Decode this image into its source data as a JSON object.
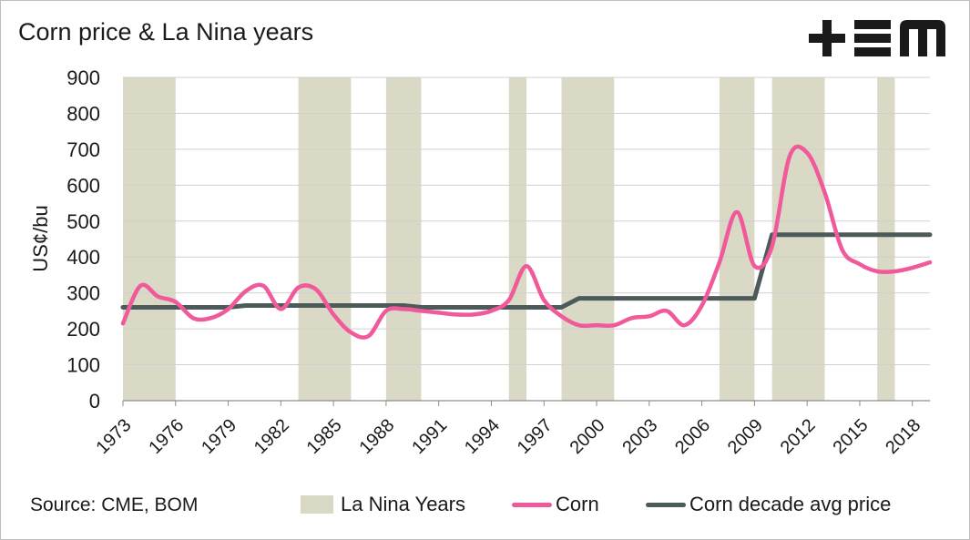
{
  "header": {
    "title": "Corn price & La Nina years",
    "logo_text": "+EM"
  },
  "footer": {
    "source": "Source: CME, BOM"
  },
  "colors": {
    "corn": "#f05a9a",
    "avg": "#4d5a5a",
    "la_nina": "#d9d9c5"
  },
  "chart_data": {
    "type": "line",
    "title": "Corn price & La Nina years",
    "xlabel": "",
    "ylabel": "US¢/bu",
    "ylim": [
      0,
      900
    ],
    "yticks": [
      0,
      100,
      200,
      300,
      400,
      500,
      600,
      700,
      800,
      900
    ],
    "xlim": [
      1973,
      2019
    ],
    "xticks": [
      "1973",
      "1976",
      "1979",
      "1982",
      "1985",
      "1988",
      "1991",
      "1994",
      "1997",
      "2000",
      "2003",
      "2006",
      "2009",
      "2012",
      "2015",
      "2018"
    ],
    "grid": "horizontal",
    "legend_position": "bottom",
    "la_nina_years": [
      {
        "start": 1973,
        "end": 1976
      },
      {
        "start": 1983,
        "end": 1986
      },
      {
        "start": 1988,
        "end": 1990
      },
      {
        "start": 1995,
        "end": 1996
      },
      {
        "start": 1998,
        "end": 2001
      },
      {
        "start": 2007,
        "end": 2009
      },
      {
        "start": 2010,
        "end": 2013
      },
      {
        "start": 2016,
        "end": 2017
      }
    ],
    "series": [
      {
        "name": "Corn",
        "x": [
          1973,
          1974,
          1975,
          1976,
          1977,
          1978,
          1979,
          1980,
          1981,
          1982,
          1983,
          1984,
          1985,
          1986,
          1987,
          1988,
          1989,
          1990,
          1991,
          1992,
          1993,
          1994,
          1995,
          1996,
          1997,
          1998,
          1999,
          2000,
          2001,
          2002,
          2003,
          2004,
          2005,
          2006,
          2007,
          2008,
          2009,
          2010,
          2011,
          2012,
          2013,
          2014,
          2015,
          2016,
          2017,
          2018,
          2019
        ],
        "values": [
          215,
          320,
          290,
          275,
          230,
          230,
          255,
          305,
          320,
          255,
          315,
          310,
          240,
          190,
          180,
          250,
          255,
          250,
          245,
          240,
          240,
          250,
          280,
          375,
          280,
          235,
          210,
          210,
          210,
          230,
          235,
          250,
          210,
          265,
          385,
          525,
          375,
          430,
          680,
          690,
          580,
          420,
          380,
          360,
          360,
          370,
          385
        ]
      },
      {
        "name": "Corn decade avg price",
        "x": [
          1973,
          1979,
          1980,
          1989,
          1990,
          1998,
          1999,
          2009,
          2010,
          2019
        ],
        "values": [
          260,
          260,
          265,
          265,
          260,
          260,
          285,
          285,
          462,
          462
        ]
      }
    ]
  },
  "legend": {
    "items": [
      {
        "label": "La Nina Years"
      },
      {
        "label": "Corn"
      },
      {
        "label": "Corn decade avg price"
      }
    ]
  }
}
